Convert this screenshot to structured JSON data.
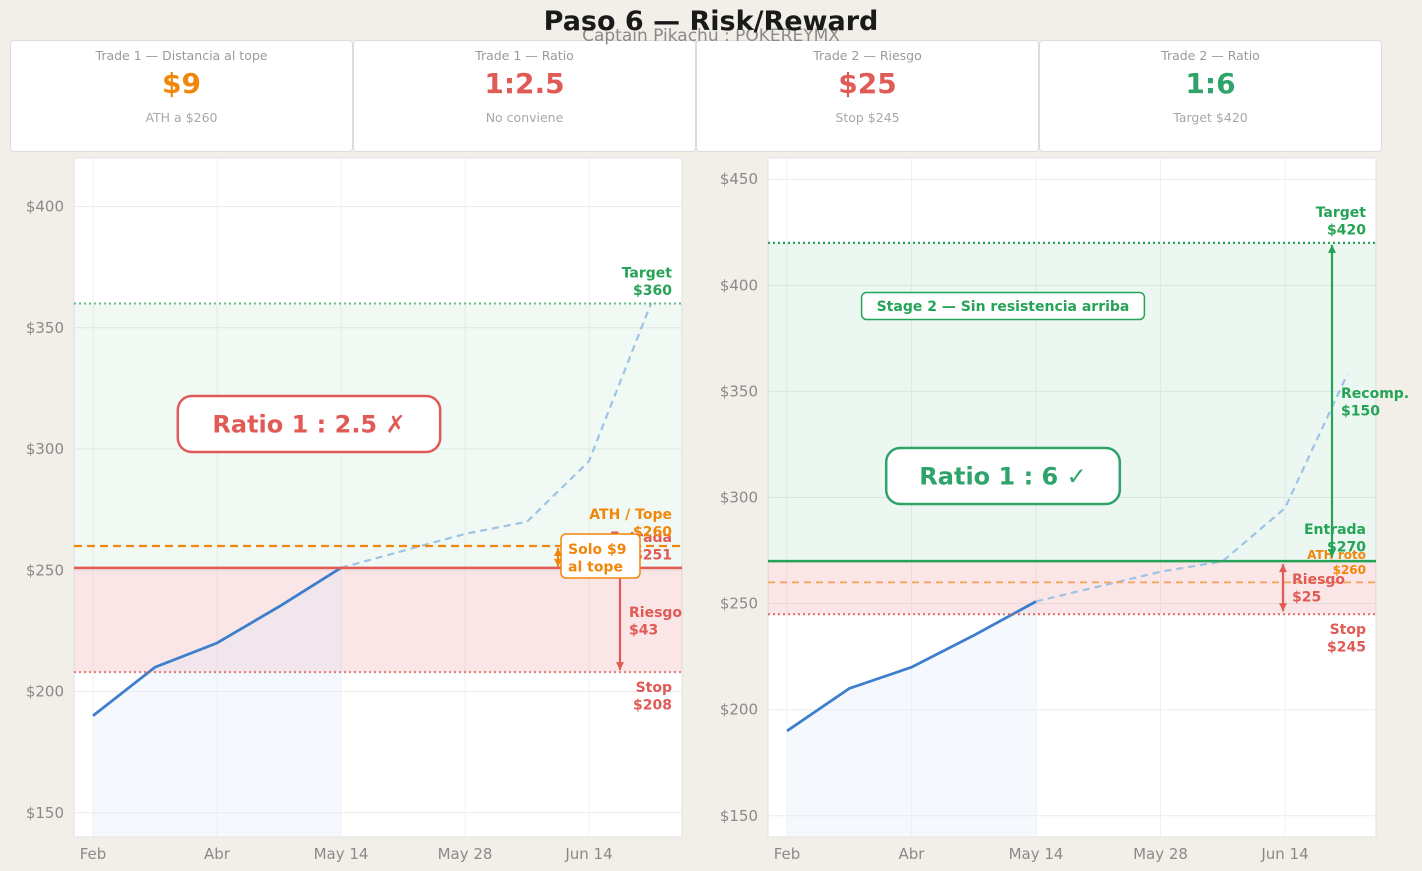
{
  "header": {
    "title": "Paso 6 — Risk/Reward",
    "subtitle": "Captain Pikachu : POKEREYMX"
  },
  "cards": [
    {
      "label": "Trade 1 — Distancia al tope",
      "value": "$9",
      "sub": "ATH a $260",
      "color": "#f0870a"
    },
    {
      "label": "Trade 1 — Ratio",
      "value": "1:2.5",
      "sub": "No conviene",
      "color": "#e05a56"
    },
    {
      "label": "Trade 2 — Riesgo",
      "value": "$25",
      "sub": "Stop $245",
      "color": "#e05a56"
    },
    {
      "label": "Trade 2 — Ratio",
      "value": "1:6",
      "sub": "Target $420",
      "color": "#2ea36a"
    }
  ],
  "colors": {
    "price": "#3d7fcc",
    "projection": "#9dc3e6",
    "green": "#25a356",
    "red": "#e05a56",
    "orange": "#f0870a"
  },
  "chart_data": [
    {
      "type": "line",
      "x_labels": [
        "Feb",
        "Abr",
        "May 14",
        "May 28",
        "Jun 14"
      ],
      "ylim": [
        140,
        420
      ],
      "y_ticks": [
        150,
        200,
        250,
        300,
        350,
        400
      ],
      "grid": true,
      "series": [
        {
          "x": [
            0,
            0.5,
            1,
            1.5,
            2
          ],
          "values": [
            190,
            210,
            220,
            235,
            251
          ]
        },
        {
          "x": [
            2,
            2.5,
            3,
            3.5,
            4,
            4.5
          ],
          "values": [
            251,
            258,
            265,
            270,
            295,
            360
          ]
        }
      ],
      "levels": {
        "target": 360,
        "ath": 260,
        "entry": 251,
        "stop": 208
      },
      "annotations": {
        "target": [
          "Target",
          "$360"
        ],
        "ath": [
          "ATH / Tope",
          "$260"
        ],
        "entry": [
          "Entrada",
          "$251"
        ],
        "stop": [
          "Stop",
          "$208"
        ],
        "risk": [
          "Riesgo",
          "$43"
        ],
        "gap_box": [
          "Solo $9",
          "al tope"
        ],
        "ratio_box": "Ratio 1 : 2.5  ✗"
      }
    },
    {
      "type": "line",
      "x_labels": [
        "Feb",
        "Abr",
        "May 14",
        "May 28",
        "Jun 14"
      ],
      "ylim": [
        140,
        460
      ],
      "y_ticks": [
        150,
        200,
        250,
        300,
        350,
        400,
        450
      ],
      "grid": true,
      "series": [
        {
          "x": [
            0,
            0.5,
            1,
            1.5,
            2
          ],
          "values": [
            190,
            210,
            220,
            235,
            251
          ]
        },
        {
          "x": [
            2,
            2.5,
            3,
            3.5,
            4,
            4.5
          ],
          "values": [
            251,
            258,
            265,
            270,
            295,
            358
          ]
        }
      ],
      "levels": {
        "target": 420,
        "entry": 270,
        "ath": 260,
        "stop": 245
      },
      "annotations": {
        "target": [
          "Target",
          "$420"
        ],
        "entry": [
          "Entrada",
          "$270"
        ],
        "ath": [
          "ATH roto",
          "$260"
        ],
        "stop": [
          "Stop",
          "$245"
        ],
        "risk": [
          "Riesgo",
          "$25"
        ],
        "reward": [
          "Recomp.",
          "$150"
        ],
        "stage_box": "Stage 2 — Sin resistencia arriba",
        "ratio_box": "Ratio 1 : 6  ✓"
      }
    }
  ]
}
